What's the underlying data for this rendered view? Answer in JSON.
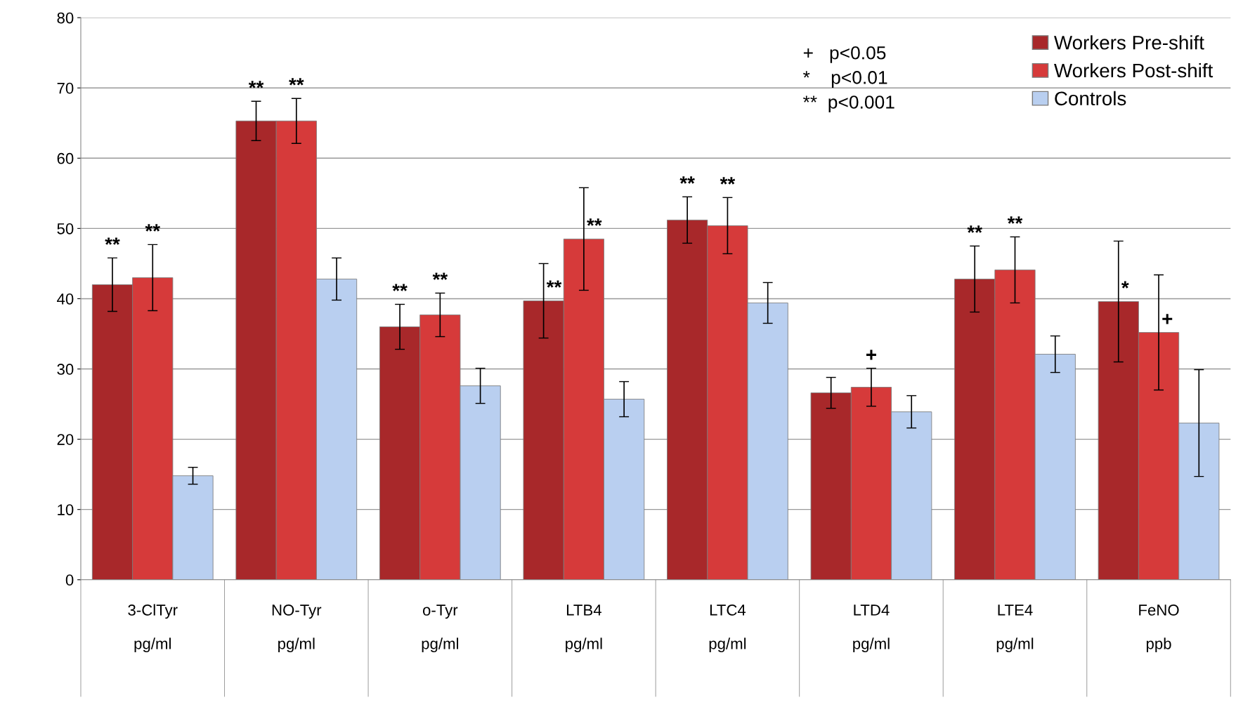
{
  "chart_data": {
    "type": "bar",
    "categories": [
      "3-ClTyr\n\npg/ml",
      "NO-Tyr\n\npg/ml",
      "o-Tyr\n\npg/ml",
      "LTB4\n\npg/ml",
      "LTC4\n\npg/ml",
      "LTD4\n\npg/ml",
      "LTE4\n\npg/ml",
      "FeNO\n\nppb"
    ],
    "series": [
      {
        "name": "Workers Pre-shift",
        "color": "#a8282a",
        "values": [
          42.0,
          65.3,
          36.0,
          39.7,
          51.2,
          26.6,
          42.8,
          39.6
        ],
        "errors": [
          3.8,
          2.8,
          3.2,
          5.3,
          3.3,
          2.2,
          4.7,
          8.6
        ],
        "value_labels": [
          "**",
          "**",
          "**",
          "**",
          "**",
          null,
          "**",
          "*"
        ]
      },
      {
        "name": "Workers Post-shift",
        "color": "#d63a3a",
        "values": [
          43.0,
          65.3,
          37.7,
          48.5,
          50.4,
          27.4,
          44.1,
          35.2
        ],
        "errors": [
          4.7,
          3.2,
          3.1,
          7.3,
          4.0,
          2.7,
          4.7,
          8.2
        ],
        "value_labels": [
          "**",
          "**",
          "**",
          "**",
          "**",
          "+",
          "**",
          "+"
        ]
      },
      {
        "name": "Controls",
        "color": "#b9cff0",
        "values": [
          14.8,
          42.8,
          27.6,
          25.7,
          39.4,
          23.9,
          32.1,
          22.3
        ],
        "errors": [
          1.2,
          3.0,
          2.5,
          2.5,
          2.9,
          2.3,
          2.6,
          7.6
        ]
      }
    ],
    "ylim": [
      0,
      80
    ],
    "yticks": [
      0,
      10,
      20,
      30,
      40,
      50,
      60,
      70,
      80
    ],
    "grid": "y",
    "legend": "top right",
    "annotations": [
      "+   p<0.05\n*    p<0.01\n**  p<0.001"
    ]
  }
}
